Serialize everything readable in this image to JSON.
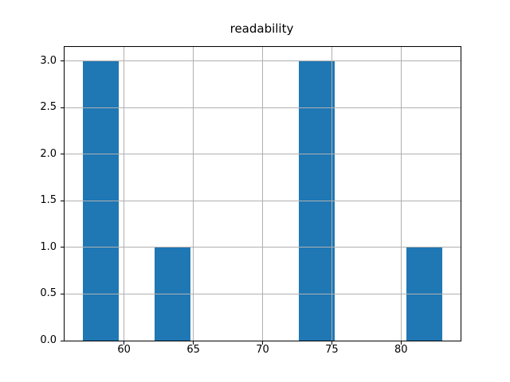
{
  "chart_data": {
    "type": "bar",
    "subtype": "histogram",
    "title": "readability",
    "xlabel": "",
    "ylabel": "",
    "bin_edges": [
      57.0,
      59.6,
      62.2,
      64.8,
      67.4,
      70.0,
      72.6,
      75.2,
      77.8,
      80.4,
      83.0
    ],
    "counts": [
      3,
      0,
      1,
      0,
      0,
      0,
      3,
      0,
      0,
      1
    ],
    "xlim": [
      55.7,
      84.3
    ],
    "ylim": [
      0,
      3.15
    ],
    "x_ticks": [
      {
        "value": 60,
        "label": "60"
      },
      {
        "value": 65,
        "label": "65"
      },
      {
        "value": 70,
        "label": "70"
      },
      {
        "value": 75,
        "label": "75"
      },
      {
        "value": 80,
        "label": "80"
      }
    ],
    "y_ticks": [
      {
        "value": 0.0,
        "label": "0.0"
      },
      {
        "value": 0.5,
        "label": "0.5"
      },
      {
        "value": 1.0,
        "label": "1.0"
      },
      {
        "value": 1.5,
        "label": "1.5"
      },
      {
        "value": 2.0,
        "label": "2.0"
      },
      {
        "value": 2.5,
        "label": "2.5"
      },
      {
        "value": 3.0,
        "label": "3.0"
      }
    ],
    "grid": true,
    "legend": null,
    "colors": {
      "bar": "#1f77b4",
      "grid": "#b0b0b0",
      "spine": "#000000",
      "background": "#ffffff",
      "text": "#000000"
    }
  }
}
